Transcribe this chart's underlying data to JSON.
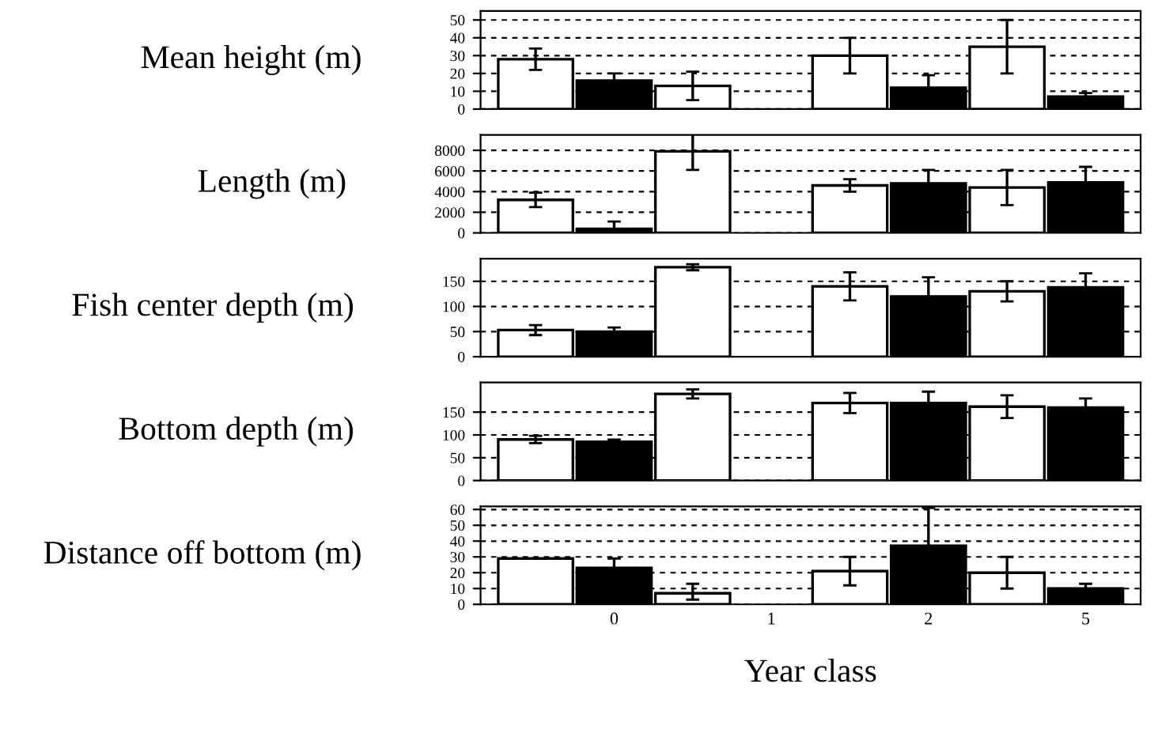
{
  "chart_data": [
    {
      "type": "bar",
      "ylabel": "Mean height (m)",
      "categories": [
        null,
        "0",
        null,
        "1",
        null,
        "2",
        null,
        "5"
      ],
      "values": [
        28,
        16,
        13,
        null,
        30,
        12,
        35,
        7
      ],
      "errors": [
        6,
        4,
        8,
        null,
        10,
        7,
        15,
        2
      ],
      "colors": [
        "#ffffff",
        "#000000",
        "#ffffff",
        "#ffffff",
        "#ffffff",
        "#000000",
        "#ffffff",
        "#000000"
      ],
      "ylim": [
        0,
        55
      ],
      "yticks": [
        0,
        10,
        20,
        30,
        40,
        50
      ],
      "grid": "y",
      "tick_labels": "y"
    },
    {
      "type": "bar",
      "ylabel": "Length (m)",
      "categories": [
        null,
        "0",
        null,
        "1",
        null,
        "2",
        null,
        "5"
      ],
      "values": [
        3200,
        400,
        7900,
        null,
        4600,
        4800,
        4400,
        4900
      ],
      "errors": [
        700,
        [
          400,
          1100
        ],
        1800,
        null,
        600,
        1300,
        1700,
        1500
      ],
      "colors": [
        "#ffffff",
        "#000000",
        "#ffffff",
        "#ffffff",
        "#ffffff",
        "#000000",
        "#ffffff",
        "#000000"
      ],
      "ylim": [
        0,
        9500
      ],
      "yticks": [
        0,
        2000,
        4000,
        6000,
        8000
      ],
      "grid": "y",
      "tick_labels": "y"
    },
    {
      "type": "bar",
      "ylabel": "Fish center depth (m)",
      "categories": [
        null,
        "0",
        null,
        "1",
        null,
        "2",
        null,
        "5"
      ],
      "values": [
        53,
        50,
        178,
        null,
        140,
        120,
        130,
        138
      ],
      "errors": [
        10,
        8,
        6,
        null,
        28,
        38,
        20,
        28
      ],
      "colors": [
        "#ffffff",
        "#000000",
        "#ffffff",
        "#ffffff",
        "#ffffff",
        "#000000",
        "#ffffff",
        "#000000"
      ],
      "ylim": [
        0,
        195
      ],
      "yticks": [
        0,
        50,
        100,
        150
      ],
      "grid": "y",
      "tick_labels": "y"
    },
    {
      "type": "bar",
      "ylabel": "Bottom depth (m)",
      "categories": [
        null,
        "0",
        null,
        "1",
        null,
        "2",
        null,
        "5"
      ],
      "values": [
        90,
        85,
        190,
        null,
        170,
        170,
        162,
        160
      ],
      "errors": [
        8,
        5,
        10,
        null,
        22,
        25,
        25,
        20
      ],
      "colors": [
        "#ffffff",
        "#000000",
        "#ffffff",
        "#ffffff",
        "#ffffff",
        "#000000",
        "#ffffff",
        "#000000"
      ],
      "ylim": [
        0,
        215
      ],
      "yticks": [
        0,
        50,
        100,
        150
      ],
      "grid": "y",
      "tick_labels": "y"
    },
    {
      "type": "bar",
      "ylabel": "Distance off bottom (m)",
      "xlabel": "Year class",
      "categories": [
        null,
        "0",
        null,
        "1",
        null,
        "2",
        null,
        "5"
      ],
      "values": [
        29,
        23,
        7,
        null,
        21,
        37,
        20,
        10
      ],
      "errors": [
        null,
        6,
        [
          3,
          13
        ],
        null,
        9,
        24,
        10,
        3
      ],
      "colors": [
        "#ffffff",
        "#000000",
        "#ffffff",
        "#ffffff",
        "#ffffff",
        "#000000",
        "#ffffff",
        "#000000"
      ],
      "ylim": [
        0,
        62
      ],
      "yticks": [
        0,
        10,
        20,
        30,
        40,
        50,
        60
      ],
      "grid": "y"
    }
  ]
}
